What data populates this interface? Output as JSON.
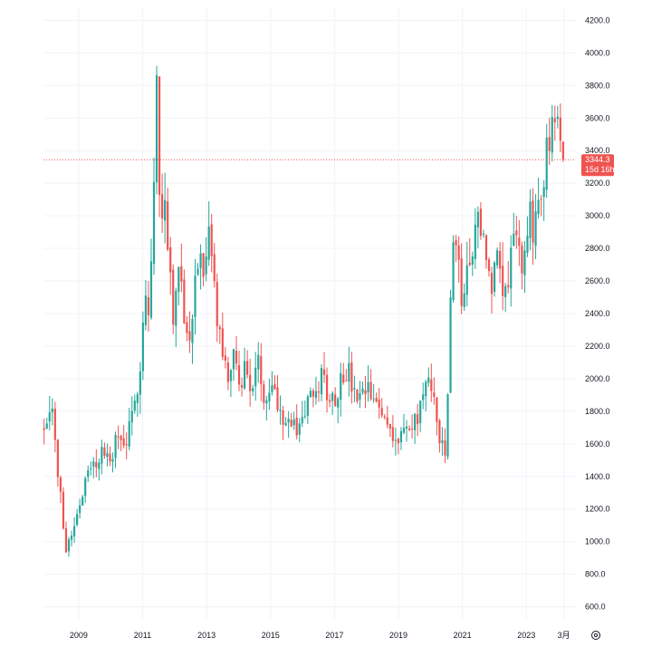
{
  "chart_data": {
    "type": "candlestick",
    "title": "",
    "xlabel": "",
    "ylabel": "",
    "ylim": [
      520,
      4280
    ],
    "y_ticks": [
      "600.0",
      "800.0",
      "1000.0",
      "1200.0",
      "1400.0",
      "1600.0",
      "1800.0",
      "2000.0",
      "2200.0",
      "2400.0",
      "2600.0",
      "2800.0",
      "3000.0",
      "3200.0",
      "3400.0",
      "3600.0",
      "3800.0",
      "4000.0",
      "4200.0"
    ],
    "x_ticks": [
      {
        "label": "2009",
        "t": 2009.0
      },
      {
        "label": "2011",
        "t": 2011.0
      },
      {
        "label": "2013",
        "t": 2013.0
      },
      {
        "label": "2015",
        "t": 2015.0
      },
      {
        "label": "2017",
        "t": 2017.0
      },
      {
        "label": "2019",
        "t": 2019.0
      },
      {
        "label": "2021",
        "t": 2021.0
      },
      {
        "label": "2023",
        "t": 2023.0
      },
      {
        "label": "3月",
        "t": 2024.17
      }
    ],
    "x_range": [
      2007.9,
      2024.55
    ],
    "current_price": {
      "value": 3344.3,
      "label": "3344.3",
      "countdown": "15d 16h"
    },
    "grid": true,
    "colors": {
      "up": "#26a69a",
      "down": "#ef5350",
      "price_line": "#ef5350",
      "price_tag": "#ef5350",
      "grid": "#f0f3fa",
      "axis_text": "#131722"
    },
    "settings_icon": "gear-icon",
    "anchor_closes": [
      [
        2007.92,
        1720
      ],
      [
        2008.15,
        1900
      ],
      [
        2008.3,
        1490
      ],
      [
        2008.45,
        1250
      ],
      [
        2008.6,
        960
      ],
      [
        2008.8,
        1060
      ],
      [
        2009.0,
        1220
      ],
      [
        2009.25,
        1400
      ],
      [
        2009.5,
        1470
      ],
      [
        2009.75,
        1560
      ],
      [
        2009.95,
        1480
      ],
      [
        2010.2,
        1640
      ],
      [
        2010.45,
        1590
      ],
      [
        2010.7,
        1760
      ],
      [
        2010.95,
        2150
      ],
      [
        2011.05,
        2560
      ],
      [
        2011.2,
        2380
      ],
      [
        2011.35,
        3150
      ],
      [
        2011.45,
        3890
      ],
      [
        2011.55,
        2840
      ],
      [
        2011.7,
        3150
      ],
      [
        2011.85,
        2700
      ],
      [
        2012.0,
        2310
      ],
      [
        2012.15,
        2840
      ],
      [
        2012.3,
        2420
      ],
      [
        2012.45,
        2170
      ],
      [
        2012.6,
        2550
      ],
      [
        2012.75,
        2780
      ],
      [
        2012.9,
        2560
      ],
      [
        2013.0,
        2700
      ],
      [
        2013.1,
        2880
      ],
      [
        2013.2,
        2650
      ],
      [
        2013.35,
        2320
      ],
      [
        2013.5,
        2150
      ],
      [
        2013.65,
        1980
      ],
      [
        2013.8,
        2140
      ],
      [
        2014.0,
        1980
      ],
      [
        2014.2,
        2060
      ],
      [
        2014.4,
        1940
      ],
      [
        2014.6,
        2090
      ],
      [
        2014.8,
        1890
      ],
      [
        2015.0,
        2010
      ],
      [
        2015.2,
        1870
      ],
      [
        2015.4,
        1780
      ],
      [
        2015.6,
        1730
      ],
      [
        2015.8,
        1690
      ],
      [
        2016.0,
        1760
      ],
      [
        2016.2,
        1890
      ],
      [
        2016.4,
        1840
      ],
      [
        2016.6,
        2050
      ],
      [
        2016.8,
        1900
      ],
      [
        2017.0,
        1880
      ],
      [
        2017.2,
        2000
      ],
      [
        2017.4,
        2060
      ],
      [
        2017.6,
        1900
      ],
      [
        2017.8,
        1850
      ],
      [
        2018.0,
        1930
      ],
      [
        2018.2,
        1870
      ],
      [
        2018.4,
        1800
      ],
      [
        2018.6,
        1770
      ],
      [
        2018.8,
        1680
      ],
      [
        2019.0,
        1620
      ],
      [
        2019.2,
        1700
      ],
      [
        2019.4,
        1670
      ],
      [
        2019.6,
        1770
      ],
      [
        2019.8,
        1950
      ],
      [
        2020.0,
        1930
      ],
      [
        2020.15,
        1870
      ],
      [
        2020.3,
        1620
      ],
      [
        2020.45,
        1500
      ],
      [
        2020.55,
        1950
      ],
      [
        2020.65,
        2600
      ],
      [
        2020.75,
        3000
      ],
      [
        2020.9,
        2600
      ],
      [
        2021.05,
        2480
      ],
      [
        2021.2,
        2750
      ],
      [
        2021.4,
        2850
      ],
      [
        2021.55,
        3020
      ],
      [
        2021.7,
        2800
      ],
      [
        2021.85,
        2560
      ],
      [
        2022.0,
        2680
      ],
      [
        2022.15,
        2820
      ],
      [
        2022.3,
        2520
      ],
      [
        2022.45,
        2640
      ],
      [
        2022.6,
        3000
      ],
      [
        2022.75,
        2850
      ],
      [
        2022.85,
        2560
      ],
      [
        2023.0,
        2760
      ],
      [
        2023.1,
        3000
      ],
      [
        2023.2,
        2880
      ],
      [
        2023.35,
        3120
      ],
      [
        2023.5,
        3240
      ],
      [
        2023.65,
        3380
      ],
      [
        2023.8,
        3490
      ],
      [
        2023.95,
        3540
      ],
      [
        2024.05,
        3380
      ],
      [
        2024.15,
        3344
      ]
    ],
    "candle_count": 190,
    "random_seed": 7
  }
}
